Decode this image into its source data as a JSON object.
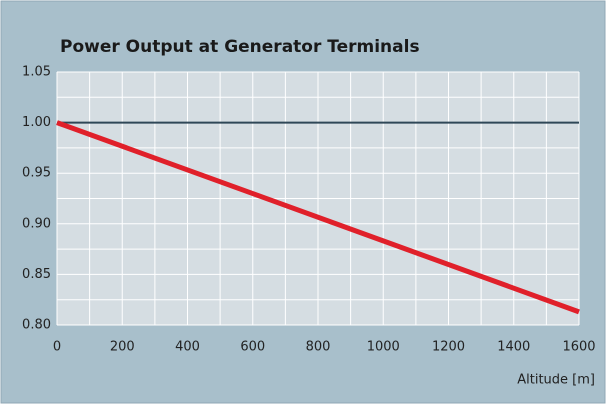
{
  "chart_data": {
    "type": "line",
    "title": "Power Output at Generator Terminals",
    "x_label": "Altitude [m]",
    "x": [
      0,
      1600
    ],
    "series": [
      {
        "color": "#2e4757",
        "values": [
          1.0,
          1.0
        ]
      },
      {
        "color": "#e0202a",
        "values": [
          1.0,
          0.813
        ]
      }
    ],
    "xlim": [
      0,
      1600
    ],
    "xticks": [
      0,
      200,
      400,
      600,
      800,
      1000,
      1200,
      1400,
      1600
    ],
    "xminor_ticks": [
      100,
      300,
      500,
      700,
      900,
      1100,
      1300,
      1500
    ],
    "ylim": [
      0.8,
      1.05
    ],
    "yticks": [
      {
        "value": 0.8,
        "label": "0.80"
      },
      0.85,
      {
        "value": 0.9,
        "label": "0.90"
      },
      0.95,
      {
        "value": 1.0,
        "label": "1.00"
      },
      1.05
    ],
    "yminor_ticks": [
      0.825,
      0.875,
      0.925,
      0.975,
      1.025
    ],
    "grid": true
  }
}
